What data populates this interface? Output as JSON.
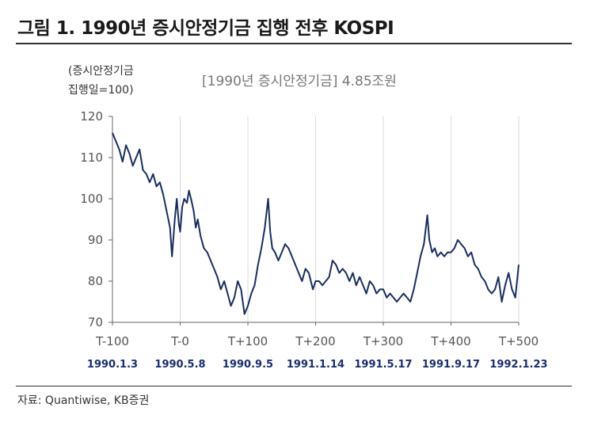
{
  "title": "그림 1. 1990년 증시안정기금 집행 전후 KOSPI",
  "source": "자료: Quantiwise, KB증권",
  "chart_data": {
    "type": "line",
    "ylabel_lines": [
      "(증시안정기금",
      "집행일=100)"
    ],
    "annotation": "[1990년 증시안정기금] 4.85조원",
    "ylim": [
      70,
      120
    ],
    "yticks": [
      70,
      80,
      90,
      100,
      110,
      120
    ],
    "xlim": [
      -100,
      500
    ],
    "xticks": [
      -100,
      0,
      100,
      200,
      300,
      400,
      500
    ],
    "xtick_labels": [
      "T-100",
      "T-0",
      "T+100",
      "T+200",
      "T+300",
      "T+400",
      "T+500"
    ],
    "xtick_dates": [
      "1990.1.3",
      "1990.5.8",
      "1990.9.5",
      "1991.1.14",
      "1991.5.17",
      "1991.9.17",
      "1992.1.23"
    ],
    "grid": "vertical",
    "line_color": "#1a2e5e",
    "series": [
      {
        "x": [
          -100,
          -95,
          -90,
          -85,
          -80,
          -75,
          -70,
          -65,
          -60,
          -55,
          -50,
          -45,
          -40,
          -35,
          -30,
          -25,
          -20,
          -15,
          -12,
          -8,
          -5,
          -2,
          0,
          3,
          6,
          10,
          13,
          16,
          20,
          23,
          26,
          30,
          35,
          40,
          45,
          50,
          55,
          60,
          65,
          70,
          75,
          80,
          85,
          90,
          95,
          100,
          105,
          110,
          115,
          120,
          125,
          130,
          133,
          136,
          140,
          145,
          150,
          155,
          160,
          165,
          170,
          175,
          180,
          185,
          190,
          193,
          196,
          200,
          205,
          210,
          215,
          220,
          225,
          230,
          235,
          240,
          245,
          250,
          255,
          260,
          265,
          270,
          275,
          280,
          285,
          290,
          295,
          300,
          305,
          310,
          315,
          320,
          325,
          330,
          335,
          340,
          345,
          350,
          355,
          360,
          365,
          368,
          372,
          376,
          380,
          385,
          390,
          395,
          400,
          405,
          410,
          415,
          420,
          425,
          430,
          435,
          440,
          445,
          450,
          455,
          460,
          465,
          470,
          475,
          480,
          485,
          490,
          495,
          500
        ],
        "y": [
          116,
          114,
          112,
          109,
          113,
          111,
          108,
          110,
          112,
          107,
          106,
          104,
          106,
          103,
          104,
          101,
          97,
          93,
          86,
          95,
          100,
          94,
          92,
          98,
          100,
          99,
          102,
          100,
          97,
          93,
          95,
          91,
          88,
          87,
          85,
          83,
          81,
          78,
          80,
          77,
          74,
          76,
          80,
          78,
          72,
          74,
          77,
          79,
          84,
          88,
          93,
          100,
          92,
          88,
          87,
          85,
          87,
          89,
          88,
          86,
          84,
          82,
          80,
          83,
          82,
          80,
          78,
          80,
          80,
          79,
          80,
          81,
          85,
          84,
          82,
          83,
          82,
          80,
          82,
          79,
          81,
          79,
          77,
          80,
          79,
          77,
          78,
          78,
          76,
          77,
          76,
          75,
          76,
          77,
          76,
          75,
          78,
          82,
          86,
          89,
          96,
          90,
          87,
          88,
          86,
          87,
          86,
          87,
          87,
          88,
          90,
          89,
          88,
          86,
          87,
          84,
          83,
          81,
          80,
          78,
          77,
          78,
          81,
          75,
          79,
          82,
          78,
          76,
          84
        ]
      }
    ]
  }
}
